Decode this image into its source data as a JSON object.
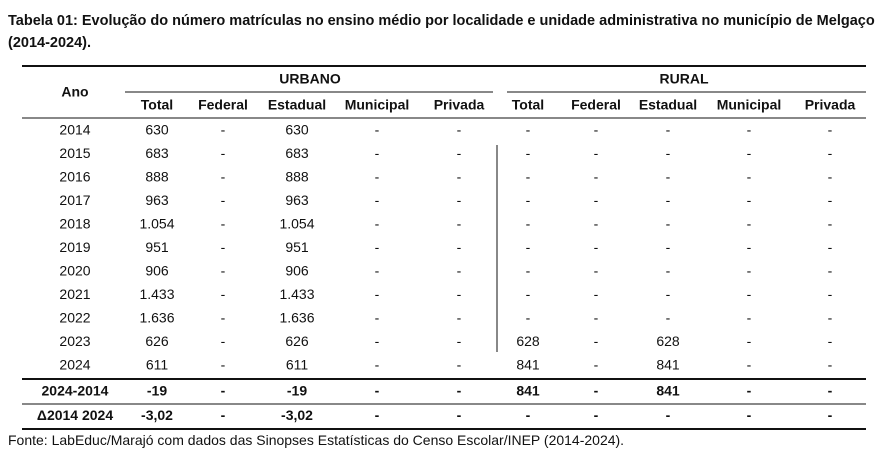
{
  "title": "Tabela 01: Evolução do número matrículas no ensino médio por localidade e unidade administrativa no município de Melgaço (2014-2024).",
  "table": {
    "header": {
      "year": "Ano",
      "groups": [
        "URBANO",
        "RURAL"
      ],
      "columns": [
        "Total",
        "Federal",
        "Estadual",
        "Municipal",
        "Privada",
        "Total",
        "Federal",
        "Estadual",
        "Municipal",
        "Privada"
      ]
    },
    "rows": [
      [
        "2014",
        "630",
        "-",
        "630",
        "-",
        "-",
        "-",
        "-",
        "-",
        "-",
        "-"
      ],
      [
        "2015",
        "683",
        "-",
        "683",
        "-",
        "-",
        "-",
        "-",
        "-",
        "-",
        "-"
      ],
      [
        "2016",
        "888",
        "-",
        "888",
        "-",
        "-",
        "-",
        "-",
        "-",
        "-",
        "-"
      ],
      [
        "2017",
        "963",
        "-",
        "963",
        "-",
        "-",
        "-",
        "-",
        "-",
        "-",
        "-"
      ],
      [
        "2018",
        "1.054",
        "-",
        "1.054",
        "-",
        "-",
        "-",
        "-",
        "-",
        "-",
        "-"
      ],
      [
        "2019",
        "951",
        "-",
        "951",
        "-",
        "-",
        "-",
        "-",
        "-",
        "-",
        "-"
      ],
      [
        "2020",
        "906",
        "-",
        "906",
        "-",
        "-",
        "-",
        "-",
        "-",
        "-",
        "-"
      ],
      [
        "2021",
        "1.433",
        "-",
        "1.433",
        "-",
        "-",
        "-",
        "-",
        "-",
        "-",
        "-"
      ],
      [
        "2022",
        "1.636",
        "-",
        "1.636",
        "-",
        "-",
        "-",
        "-",
        "-",
        "-",
        "-"
      ],
      [
        "2023",
        "626",
        "-",
        "626",
        "-",
        "-",
        "628",
        "-",
        "628",
        "-",
        "-"
      ],
      [
        "2024",
        "611",
        "-",
        "611",
        "-",
        "-",
        "841",
        "-",
        "841",
        "-",
        "-"
      ]
    ],
    "summary": [
      [
        "2024-2014",
        "-19",
        "-",
        "-19",
        "-",
        "-",
        "841",
        "-",
        "841",
        "-",
        "-"
      ],
      [
        "Δ2014 2024",
        "-3,02",
        "-",
        "-3,02",
        "-",
        "-",
        "-",
        "-",
        "-",
        "-",
        "-"
      ]
    ]
  },
  "source": "Fonte: LabEduc/Marajó com dados das Sinopses Estatísticas do Censo Escolar/INEP (2014-2024)."
}
